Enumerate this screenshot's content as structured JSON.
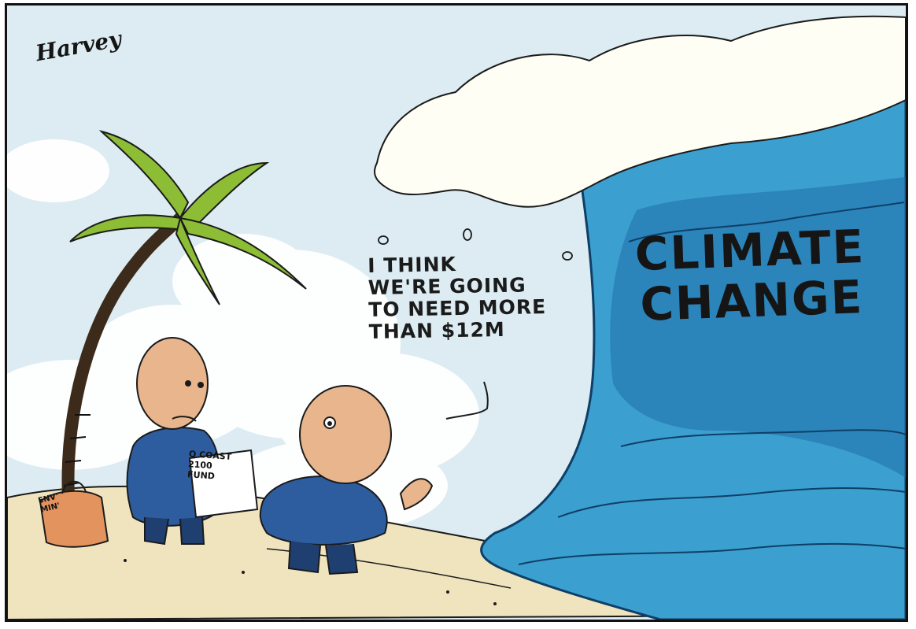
{
  "cartoon": {
    "signature": "Harvey",
    "speech_lines": [
      "I THINK",
      "WE'RE GOING",
      "TO NEED MORE",
      "THAN $12M"
    ],
    "wave_label_lines": [
      "CLIMATE",
      "CHANGE"
    ],
    "document_lines": [
      "Q COAST",
      "2100",
      "FUND"
    ],
    "bag_lines": [
      "ENV'",
      "MIN'"
    ]
  },
  "colors": {
    "sky": "#dcecf2",
    "cloud": "#ffffff",
    "sand": "#f0e4bf",
    "wave_dark": "#1f6ea8",
    "wave_mid": "#3b9fd0",
    "wave_light": "#8fd0ea",
    "foam": "#fffef5",
    "palm_leaf": "#8dbd35",
    "suit": "#2e5d9f",
    "skin": "#e8b58d",
    "bag": "#e3935e"
  }
}
